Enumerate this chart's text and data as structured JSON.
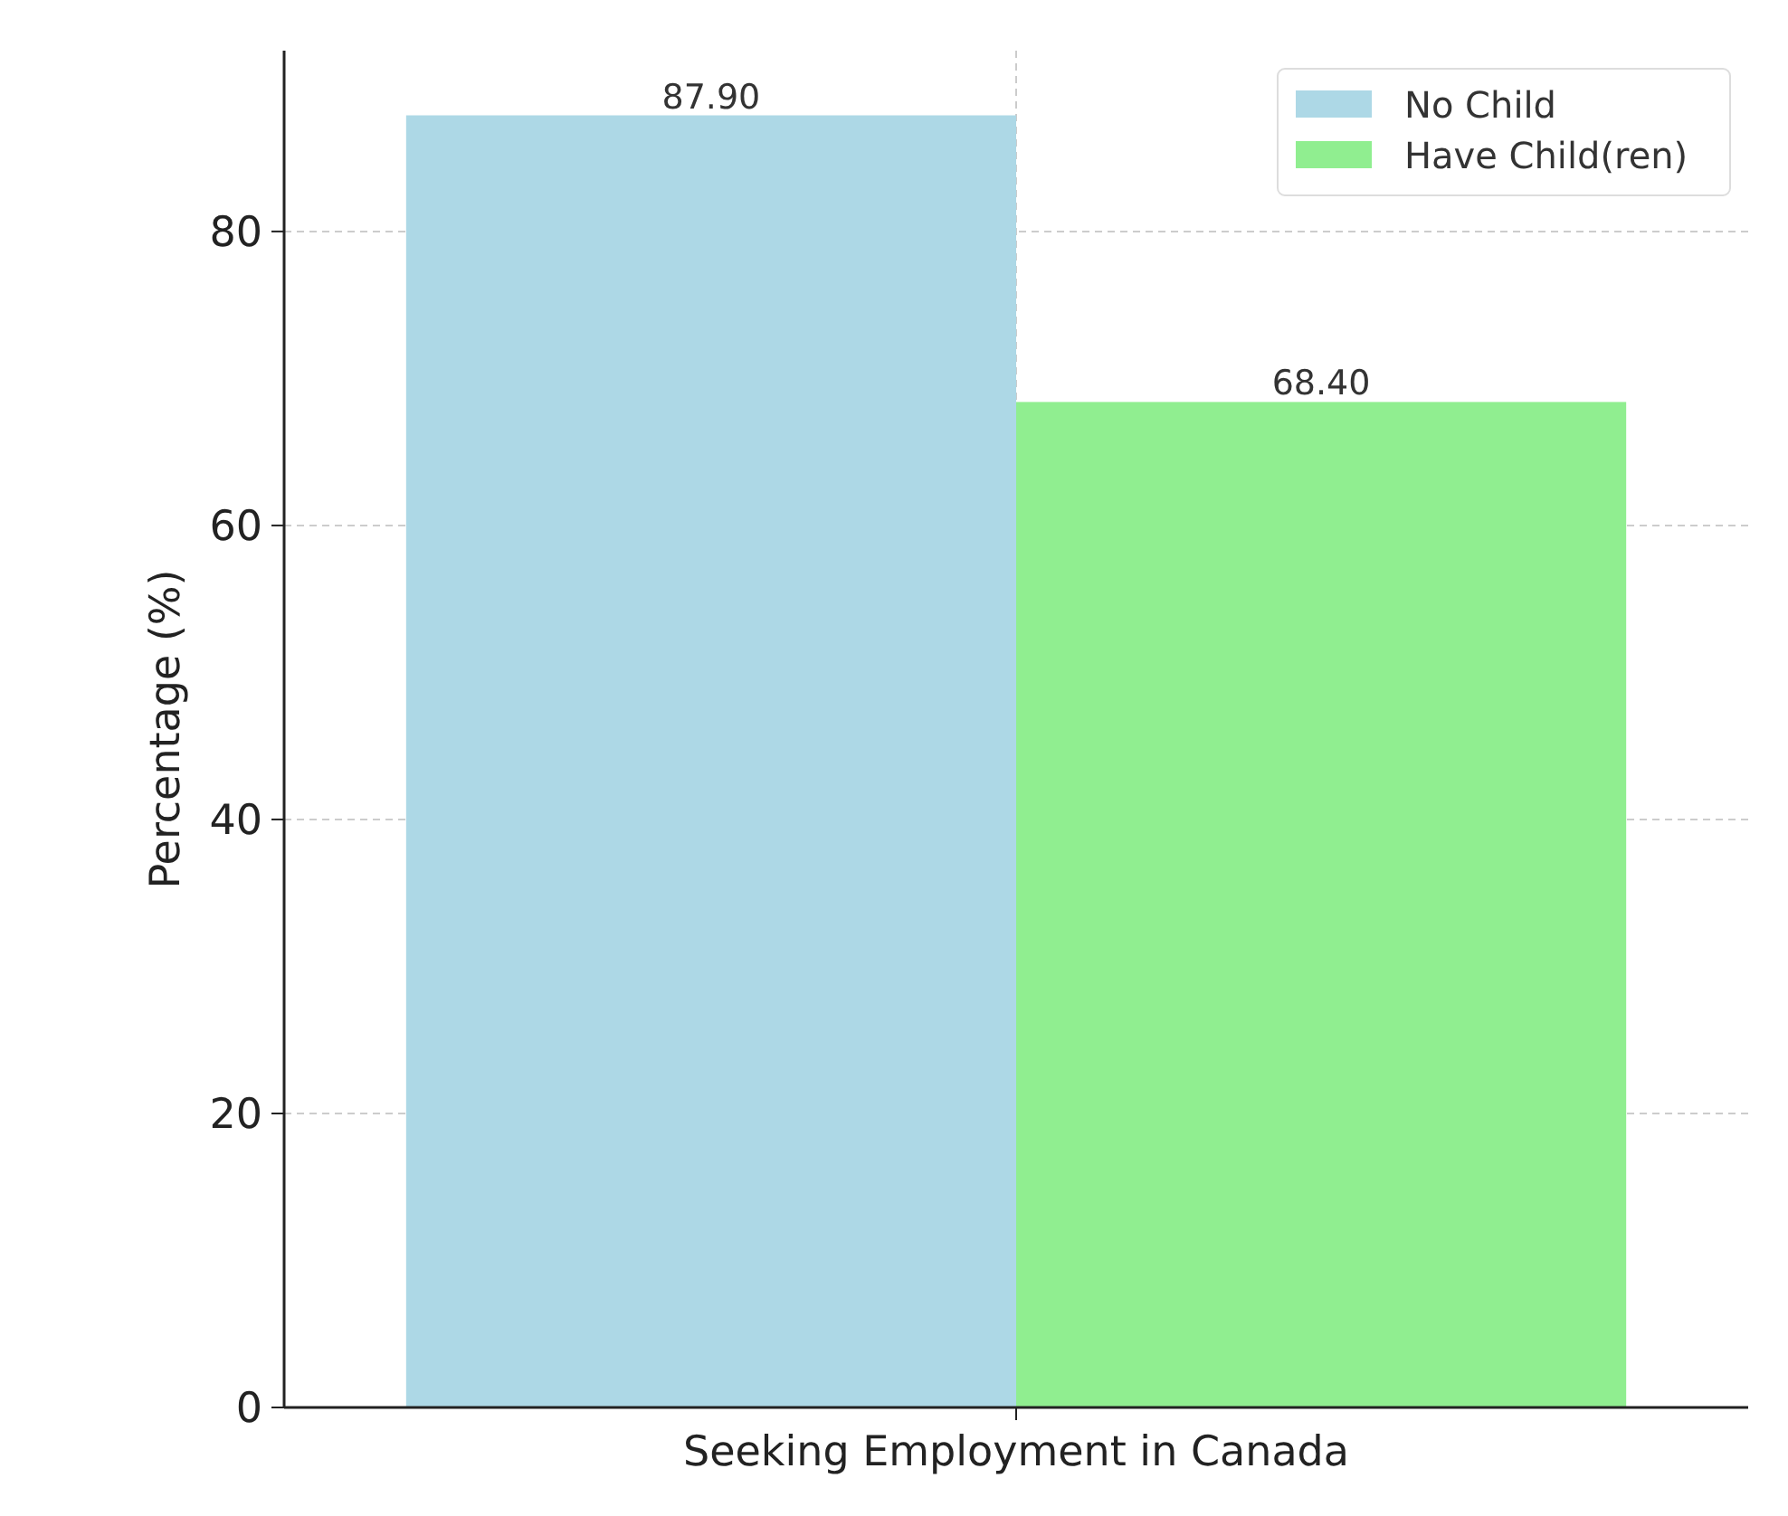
{
  "chart_data": {
    "type": "bar",
    "ylabel": "Percentage (%)",
    "categories": [
      "Seeking Employment in Canada"
    ],
    "series": [
      {
        "name": "No Child",
        "color": "#add8e6",
        "values": [
          87.9
        ],
        "value_labels": [
          "87.90"
        ]
      },
      {
        "name": "Have Child(ren)",
        "color": "#90ee90",
        "values": [
          68.4
        ],
        "value_labels": [
          "68.40"
        ]
      }
    ],
    "ylim": [
      0,
      92.3
    ],
    "yticks": [
      0,
      20,
      40,
      60,
      80
    ],
    "grid": true,
    "legend": "top right"
  }
}
